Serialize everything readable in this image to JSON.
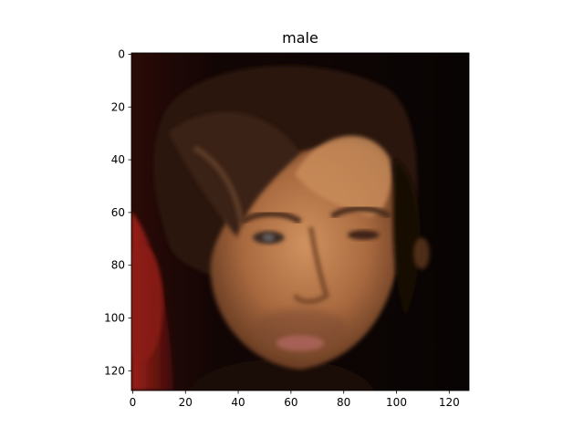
{
  "chart_data": {
    "type": "image",
    "title": "male",
    "xlabel": "",
    "ylabel": "",
    "image_width": 128,
    "image_height": 128,
    "xlim": [
      0,
      128
    ],
    "ylim": [
      128,
      0
    ],
    "y_inverted": true,
    "xticks": [
      0,
      20,
      40,
      60,
      80,
      100,
      120
    ],
    "yticks": [
      0,
      20,
      40,
      60,
      80,
      100,
      120
    ],
    "grid": false,
    "image_content": "face photograph"
  },
  "colors": {
    "background": "#ffffff",
    "axis": "#000000",
    "image_dark": "#0c0604",
    "hair": "#2a1810",
    "skin": "#b07648",
    "skin_light": "#c98c5a",
    "skin_shadow": "#6b3e22",
    "red_left": "#8c1c14",
    "lips": "#a66054"
  }
}
